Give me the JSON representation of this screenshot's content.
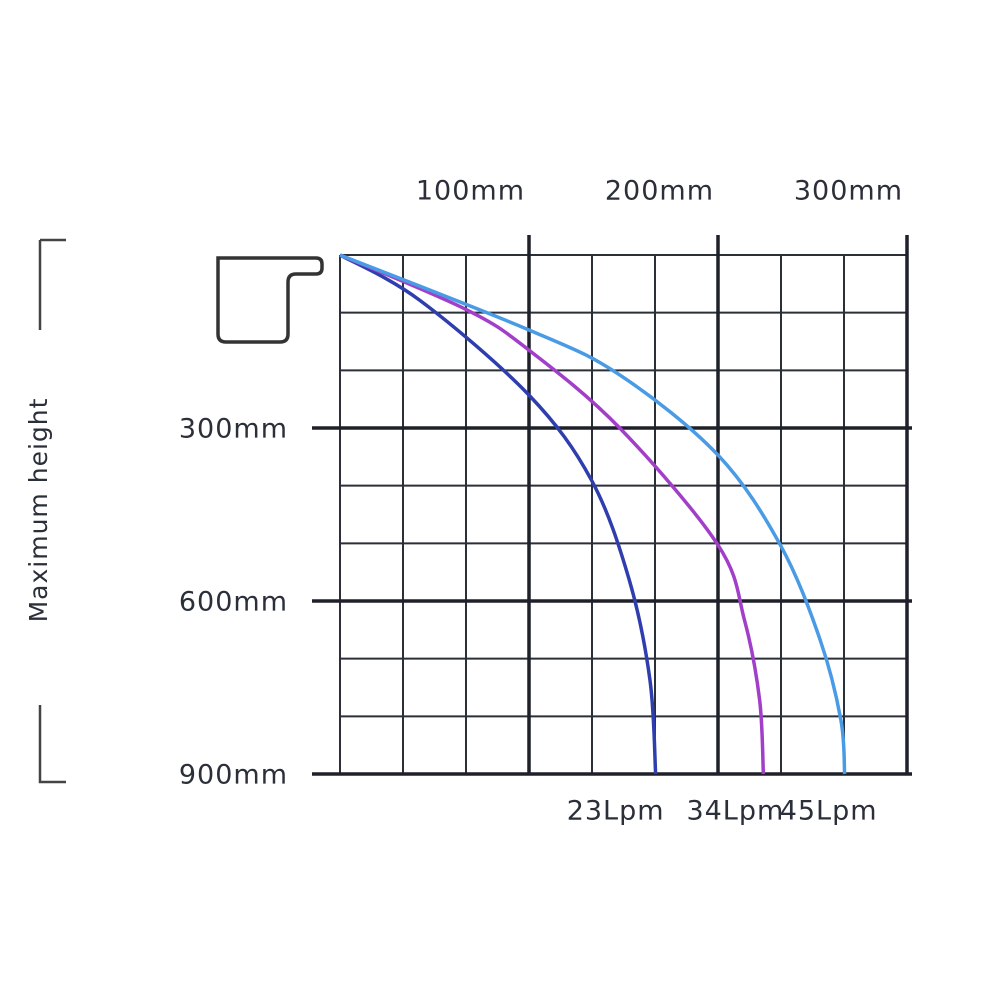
{
  "chart_data": {
    "type": "line",
    "y_axis_label": "Maximum height",
    "xlim": [
      0,
      300
    ],
    "ylim": [
      0,
      900
    ],
    "y_inverted": true,
    "xticks": [
      {
        "value": 100,
        "label": "100mm"
      },
      {
        "value": 200,
        "label": "200mm"
      },
      {
        "value": 300,
        "label": "300mm"
      }
    ],
    "yticks": [
      {
        "value": 300,
        "label": "300mm"
      },
      {
        "value": 600,
        "label": "600mm"
      },
      {
        "value": 900,
        "label": "900mm"
      }
    ],
    "grid": true,
    "minor_divisions": 3,
    "series": [
      {
        "name": "23Lpm",
        "color": "#2f3eae",
        "x": [
          0,
          42,
          100,
          133,
          153,
          164,
          167
        ],
        "values": [
          0,
          78,
          243,
          390,
          563,
          737,
          900
        ]
      },
      {
        "name": "34Lpm",
        "color": "#a23fc9",
        "x": [
          0,
          67,
          100,
          148,
          200,
          214,
          222,
          224
        ],
        "values": [
          0,
          95,
          165,
          300,
          503,
          633,
          771,
          900
        ]
      },
      {
        "name": "45Lpm",
        "color": "#4a9be6",
        "x": [
          0,
          100,
          148,
          200,
          233,
          254,
          265,
          267
        ],
        "values": [
          0,
          130,
          208,
          347,
          503,
          667,
          806,
          900
        ]
      }
    ]
  }
}
